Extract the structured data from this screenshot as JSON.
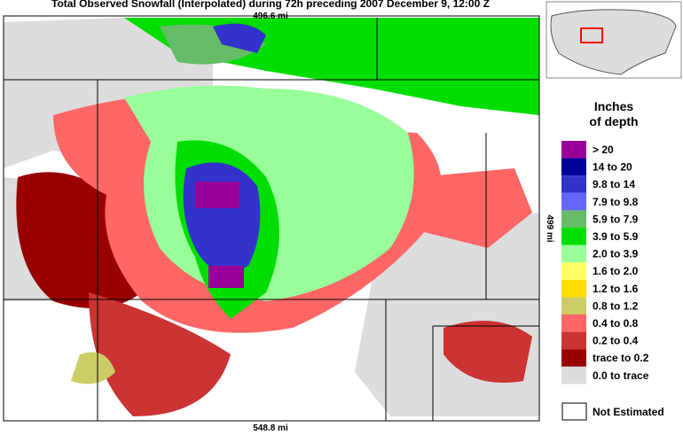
{
  "title": "Total Observed Snowfall (Interpolated) during 72h preceding 2007 December 9, 12:00 Z",
  "scale": {
    "top": "496.6 mi",
    "bottom": "548.8 mi",
    "right": "499 mi"
  },
  "legend": {
    "title": [
      "Inches",
      "of depth"
    ],
    "items": [
      {
        "label": "> 20",
        "color": "#990099"
      },
      {
        "label": "14 to 20",
        "color": "#000099"
      },
      {
        "label": "9.8 to 14",
        "color": "#3333cc"
      },
      {
        "label": "7.9 to 9.8",
        "color": "#6666ff"
      },
      {
        "label": "5.9 to 7.9",
        "color": "#66bb66"
      },
      {
        "label": "3.9 to 5.9",
        "color": "#00dd00"
      },
      {
        "label": "2.0 to 3.9",
        "color": "#99ff99"
      },
      {
        "label": "1.6 to 2.0",
        "color": "#ffff66"
      },
      {
        "label": "1.2 to 1.6",
        "color": "#ffdd00"
      },
      {
        "label": "0.8 to 1.2",
        "color": "#cccc66"
      },
      {
        "label": "0.4 to 0.8",
        "color": "#ff6666"
      },
      {
        "label": "0.2 to 0.4",
        "color": "#cc3333"
      },
      {
        "label": "trace to 0.2",
        "color": "#990000"
      },
      {
        "label": "0.0 to trace",
        "color": "#dddddd"
      }
    ],
    "not_estimated": {
      "label": "Not Estimated",
      "color": "#ffffff"
    }
  }
}
